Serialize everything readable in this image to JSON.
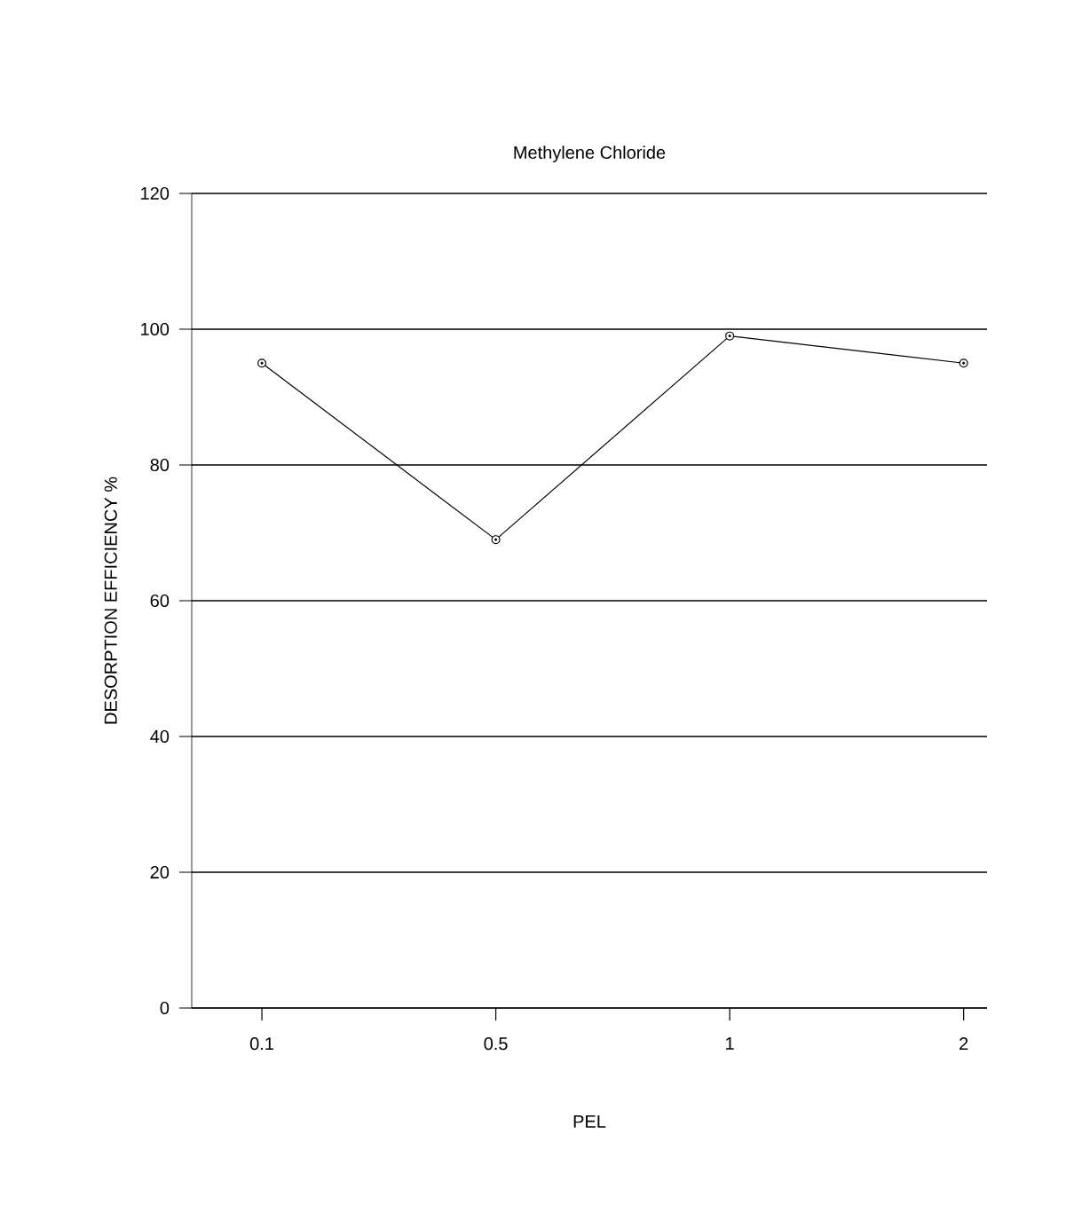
{
  "chart_data": {
    "type": "line",
    "title": "Methylene Chloride",
    "xlabel": "PEL",
    "ylabel": "DESORPTION EFFICIENCY %",
    "categories": [
      "0.1",
      "0.5",
      "1",
      "2"
    ],
    "series": [
      {
        "color": "#000000",
        "values": [
          95,
          69,
          99,
          95
        ]
      }
    ],
    "ylim": [
      0,
      120
    ],
    "yticks": [
      0,
      20,
      40,
      60,
      80,
      100,
      120
    ],
    "grid": "y",
    "marker": "circle",
    "line_style": "solid"
  }
}
